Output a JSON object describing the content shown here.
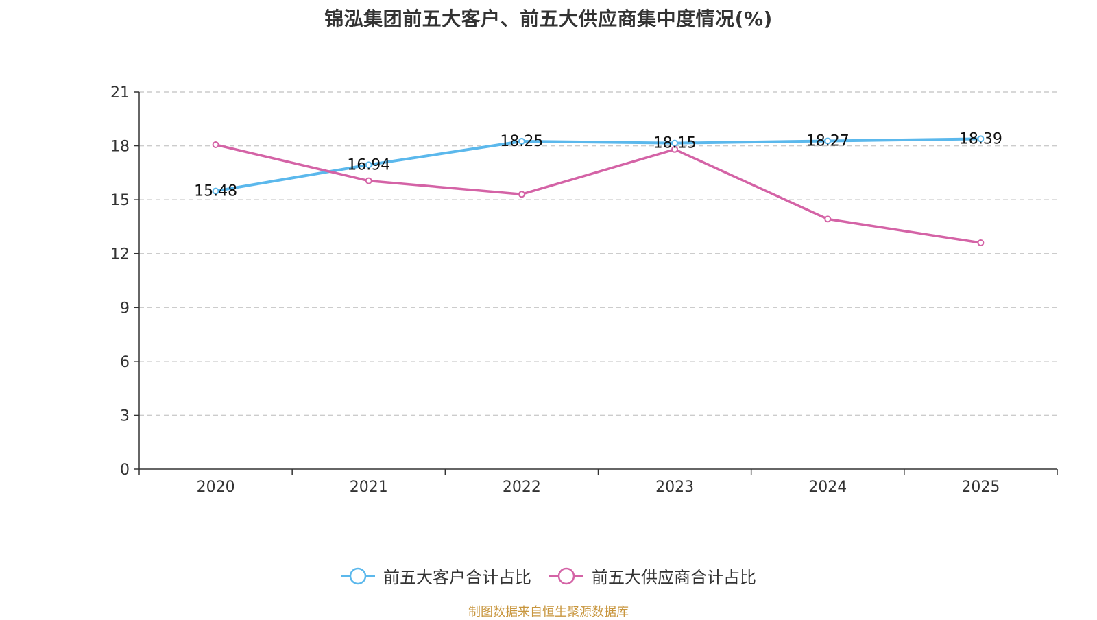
{
  "title": "锦泓集团前五大客户、前五大供应商集中度情况(%)",
  "source": "制图数据来自恒生聚源数据库",
  "colors": {
    "customers": "#5bb8ec",
    "suppliers": "#d463a6",
    "grid": "#cccccc",
    "axis": "#333333",
    "source": "#c8963e"
  },
  "legend": [
    {
      "name": "前五大客户合计占比",
      "color": "#5bb8ec"
    },
    {
      "name": "前五大供应商合计占比",
      "color": "#d463a6"
    }
  ],
  "chart_data": {
    "type": "line",
    "title": "锦泓集团前五大客户、前五大供应商集中度情况(%)",
    "categories": [
      "2020",
      "2021",
      "2022",
      "2023",
      "2024",
      "2025"
    ],
    "ylim": [
      0,
      21
    ],
    "yticks": [
      0,
      3,
      6,
      9,
      12,
      15,
      18,
      21
    ],
    "grid": true,
    "legend_position": "bottom",
    "series": [
      {
        "name": "前五大客户合计占比",
        "color": "#5bb8ec",
        "values": [
          15.48,
          16.94,
          18.25,
          18.15,
          18.27,
          18.39
        ],
        "labels_shown": true
      },
      {
        "name": "前五大供应商合计占比",
        "color": "#d463a6",
        "values": [
          18.06,
          16.05,
          15.3,
          17.8,
          13.92,
          12.6
        ],
        "labels_shown": false
      }
    ]
  }
}
